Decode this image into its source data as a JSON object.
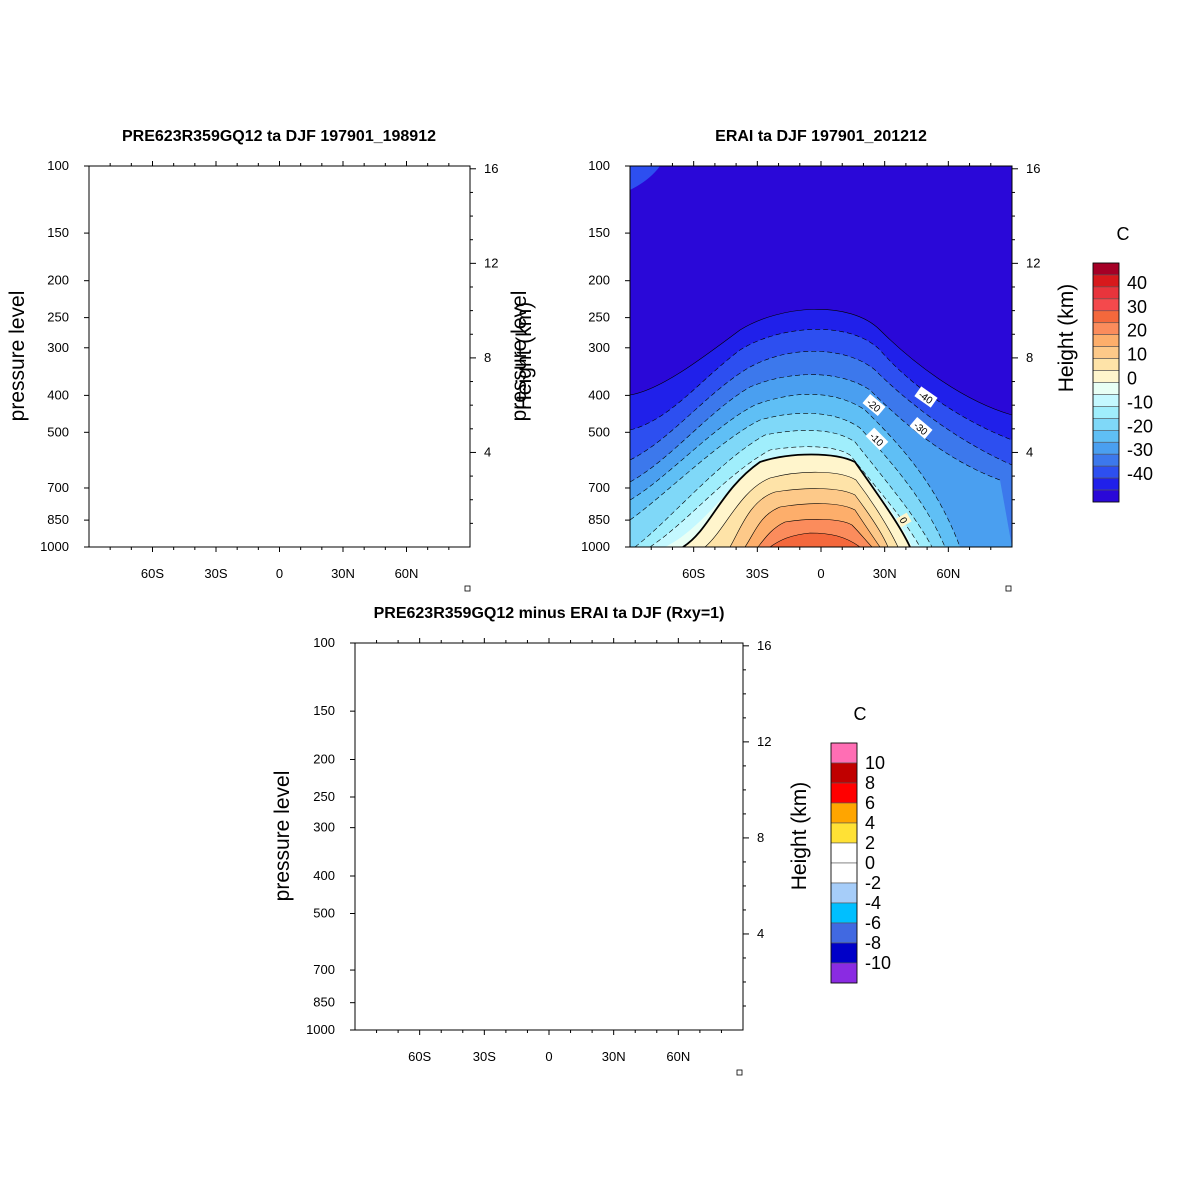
{
  "chart_data": [
    {
      "type": "contour",
      "title": "PRE623R359GQ12 ta DJF 197901_198912",
      "ylabel": "pressure level",
      "ylabel_right": "Height (km)",
      "x_ticks": [
        "60S",
        "30S",
        "0",
        "30N",
        "60N"
      ],
      "x_tick_values": [
        -60,
        -30,
        0,
        30,
        60
      ],
      "xlim": [
        -90,
        90
      ],
      "y_ticks": [
        "100",
        "150",
        "200",
        "250",
        "300",
        "400",
        "500",
        "700",
        "850",
        "1000"
      ],
      "y_tick_values": [
        100,
        150,
        200,
        250,
        300,
        400,
        500,
        700,
        850,
        1000
      ],
      "ylim": [
        1000,
        100
      ],
      "y_scale": "log",
      "right_ticks": [
        "16",
        "12",
        "8",
        "4"
      ],
      "right_tick_values": [
        16,
        12,
        8,
        4
      ],
      "empty": true
    },
    {
      "type": "contour",
      "title": "ERAI ta DJF 197901_201212",
      "ylabel": "pressure level",
      "ylabel_right": "Height (km)",
      "x_ticks": [
        "60S",
        "30S",
        "0",
        "30N",
        "60N"
      ],
      "x_tick_values": [
        -60,
        -30,
        0,
        30,
        60
      ],
      "xlim": [
        -90,
        90
      ],
      "y_ticks": [
        "100",
        "150",
        "200",
        "250",
        "300",
        "400",
        "500",
        "700",
        "850",
        "1000"
      ],
      "y_tick_values": [
        100,
        150,
        200,
        250,
        300,
        400,
        500,
        700,
        850,
        1000
      ],
      "ylim": [
        1000,
        100
      ],
      "y_scale": "log",
      "right_ticks": [
        "16",
        "12",
        "8",
        "4"
      ],
      "right_tick_values": [
        16,
        12,
        8,
        4
      ],
      "contour_labels": [
        "-40",
        "-20",
        "-30",
        "-10",
        "0"
      ],
      "colorbar": {
        "unit": "C",
        "labels": [
          "40",
          "30",
          "20",
          "10",
          "0",
          "-10",
          "-20",
          "-30",
          "-40"
        ],
        "colors": [
          "#a50026",
          "#d7191c",
          "#e8343c",
          "#f4494c",
          "#f4683c",
          "#fb8c5c",
          "#fdae6b",
          "#fdc989",
          "#fee3a8",
          "#fff5cc",
          "#e8fff5",
          "#c4f8ff",
          "#a0eefc",
          "#7fd8f8",
          "#5fbff5",
          "#4a9ff0",
          "#3c78ec",
          "#2d4ff0",
          "#2020ea",
          "#2a08d8"
        ]
      }
    },
    {
      "type": "contour",
      "title": "PRE623R359GQ12 minus ERAI ta DJF (Rxy=1)",
      "ylabel": "pressure level",
      "ylabel_right": "Height (km)",
      "x_ticks": [
        "60S",
        "30S",
        "0",
        "30N",
        "60N"
      ],
      "x_tick_values": [
        -60,
        -30,
        0,
        30,
        60
      ],
      "xlim": [
        -90,
        90
      ],
      "y_ticks": [
        "100",
        "150",
        "200",
        "250",
        "300",
        "400",
        "500",
        "700",
        "850",
        "1000"
      ],
      "y_tick_values": [
        100,
        150,
        200,
        250,
        300,
        400,
        500,
        700,
        850,
        1000
      ],
      "ylim": [
        1000,
        100
      ],
      "y_scale": "log",
      "right_ticks": [
        "16",
        "12",
        "8",
        "4"
      ],
      "right_tick_values": [
        16,
        12,
        8,
        4
      ],
      "empty": true,
      "colorbar": {
        "unit": "C",
        "labels": [
          "10",
          "8",
          "6",
          "4",
          "2",
          "0",
          "-2",
          "-4",
          "-6",
          "-8",
          "-10"
        ],
        "colors": [
          "#ff6eb4",
          "#c00000",
          "#ff0000",
          "#ffa500",
          "#ffe135",
          "#ffffff",
          "#ffffff",
          "#a6cdf9",
          "#00bfff",
          "#4169e1",
          "#0000c8",
          "#8a2be2"
        ]
      }
    }
  ]
}
